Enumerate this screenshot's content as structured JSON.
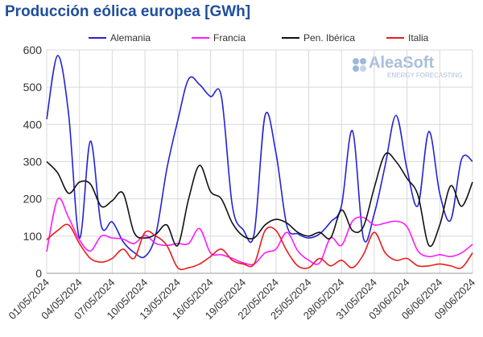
{
  "chart_data": {
    "type": "line",
    "title": "Producción eólica europea [GWh]",
    "logo": {
      "name": "AleaSoft",
      "tagline": "ENERGY FORECASTING"
    },
    "categories": [
      "01/05/2024",
      null,
      null,
      "04/05/2024",
      null,
      null,
      "07/05/2024",
      null,
      null,
      "10/05/2024",
      null,
      null,
      "13/05/2024",
      null,
      null,
      "16/05/2024",
      null,
      null,
      "19/05/2024",
      null,
      null,
      "22/05/2024",
      null,
      null,
      "25/05/2024",
      null,
      null,
      "28/05/2024",
      null,
      null,
      "31/05/2024",
      null,
      null,
      "03/06/2024",
      null,
      null,
      "06/06/2024",
      null,
      null,
      "09/06/2024"
    ],
    "series": [
      {
        "name": "Alemania",
        "color": "#2323d4",
        "values": [
          414,
          585,
          430,
          95,
          355,
          128,
          138,
          85,
          56,
          45,
          105,
          280,
          410,
          522,
          507,
          475,
          475,
          182,
          117,
          106,
          424,
          323,
          128,
          106,
          95,
          106,
          138,
          182,
          383,
          95,
          160,
          290,
          424,
          280,
          182,
          381,
          214,
          143,
          307,
          301
        ]
      },
      {
        "name": "Francia",
        "color": "#ff1aff",
        "values": [
          58,
          199,
          150,
          90,
          60,
          100,
          95,
          92,
          80,
          102,
          80,
          75,
          80,
          80,
          120,
          55,
          50,
          40,
          28,
          25,
          55,
          65,
          110,
          60,
          35,
          28,
          95,
          75,
          140,
          150,
          130,
          135,
          140,
          125,
          60,
          45,
          50,
          45,
          55,
          78
        ]
      },
      {
        "name": "Pen. Ibérica",
        "color": "#111111",
        "values": [
          300,
          270,
          215,
          245,
          240,
          180,
          195,
          215,
          110,
          95,
          105,
          130,
          75,
          200,
          290,
          220,
          200,
          135,
          100,
          95,
          130,
          145,
          135,
          110,
          100,
          110,
          95,
          170,
          115,
          125,
          230,
          320,
          300,
          255,
          210,
          75,
          130,
          235,
          180,
          245
        ]
      },
      {
        "name": "Italia",
        "color": "#e81c1c",
        "values": [
          90,
          115,
          130,
          80,
          40,
          30,
          40,
          65,
          40,
          110,
          100,
          75,
          15,
          15,
          25,
          45,
          65,
          35,
          25,
          25,
          115,
          115,
          60,
          20,
          15,
          40,
          20,
          35,
          15,
          50,
          110,
          55,
          35,
          40,
          20,
          20,
          25,
          20,
          15,
          55
        ]
      }
    ],
    "ylim": [
      0,
      600
    ],
    "yticks": [
      0,
      100,
      200,
      300,
      400,
      500,
      600
    ],
    "grid": true,
    "legend": "top"
  }
}
